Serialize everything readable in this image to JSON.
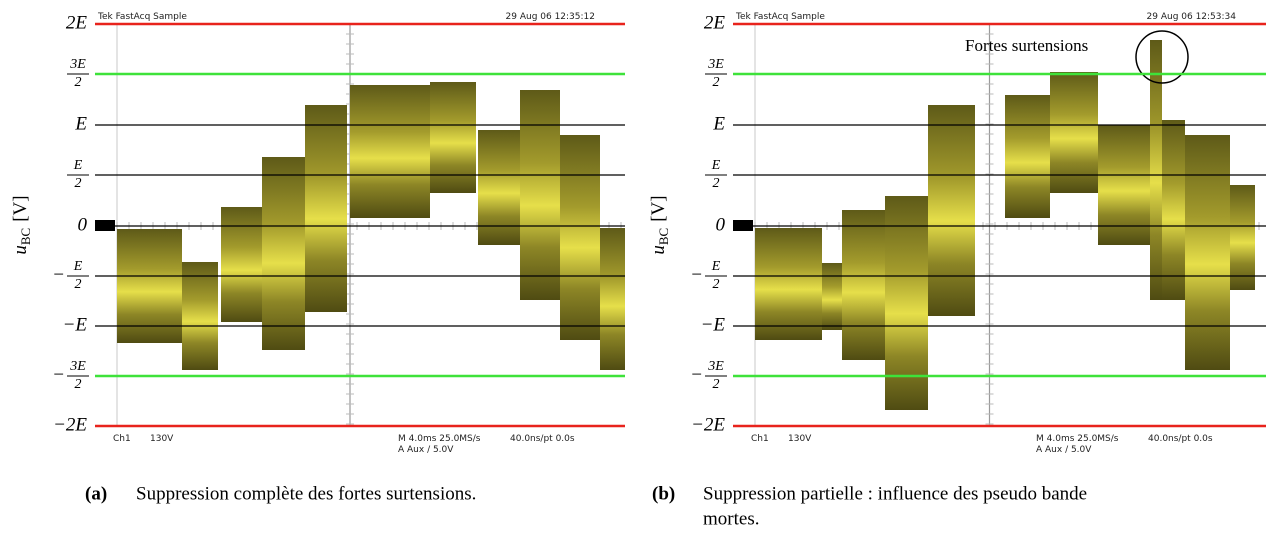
{
  "panels": [
    {
      "header": {
        "left": "Tek   FastAcq   Sample",
        "date": "29 Aug 06 12:35:12"
      },
      "footer": {
        "channel": "Ch1",
        "volts": "130V",
        "timebase": "M 4.0ms 25.0MS/s",
        "rate": "40.0ns/pt 0.0s",
        "trigger": "A  Aux  ∕  5.0V"
      },
      "y_label": {
        "symbol": "u",
        "subscript": "BC",
        "unit": "[V]"
      },
      "y_ticks": [
        {
          "text": "2E"
        },
        {
          "sign": "",
          "num": "3E",
          "den": "2"
        },
        {
          "text": "E"
        },
        {
          "sign": "",
          "num": "E",
          "den": "2"
        },
        {
          "text": "0"
        },
        {
          "sign": "−",
          "num": "E",
          "den": "2"
        },
        {
          "text": "−E"
        },
        {
          "sign": "−",
          "num": "3E",
          "den": "2"
        },
        {
          "text": "−2E"
        }
      ],
      "caption": {
        "tag": "(a)",
        "lines": [
          "Suppression complète des fortes surtensions."
        ]
      }
    },
    {
      "header": {
        "left": "Tek   FastAcq   Sample",
        "date": "29 Aug 06 12:53:34"
      },
      "footer": {
        "channel": "Ch1",
        "volts": "130V",
        "timebase": "M 4.0ms 25.0MS/s",
        "rate": "40.0ns/pt 0.0s",
        "trigger": "A  Aux  ∕  5.0V"
      },
      "y_label": {
        "symbol": "u",
        "subscript": "BC",
        "unit": "[V]"
      },
      "y_ticks": [
        {
          "text": "2E"
        },
        {
          "sign": "",
          "num": "3E",
          "den": "2"
        },
        {
          "text": "E"
        },
        {
          "sign": "",
          "num": "E",
          "den": "2"
        },
        {
          "text": "0"
        },
        {
          "sign": "−",
          "num": "E",
          "den": "2"
        },
        {
          "text": "−E"
        },
        {
          "sign": "−",
          "num": "3E",
          "den": "2"
        },
        {
          "text": "−2E"
        }
      ],
      "caption": {
        "tag": "(b)",
        "lines": [
          "Suppression partielle : influence des pseudo bande",
          "mortes."
        ]
      }
    }
  ],
  "annotation": "Fortes surtensions"
}
